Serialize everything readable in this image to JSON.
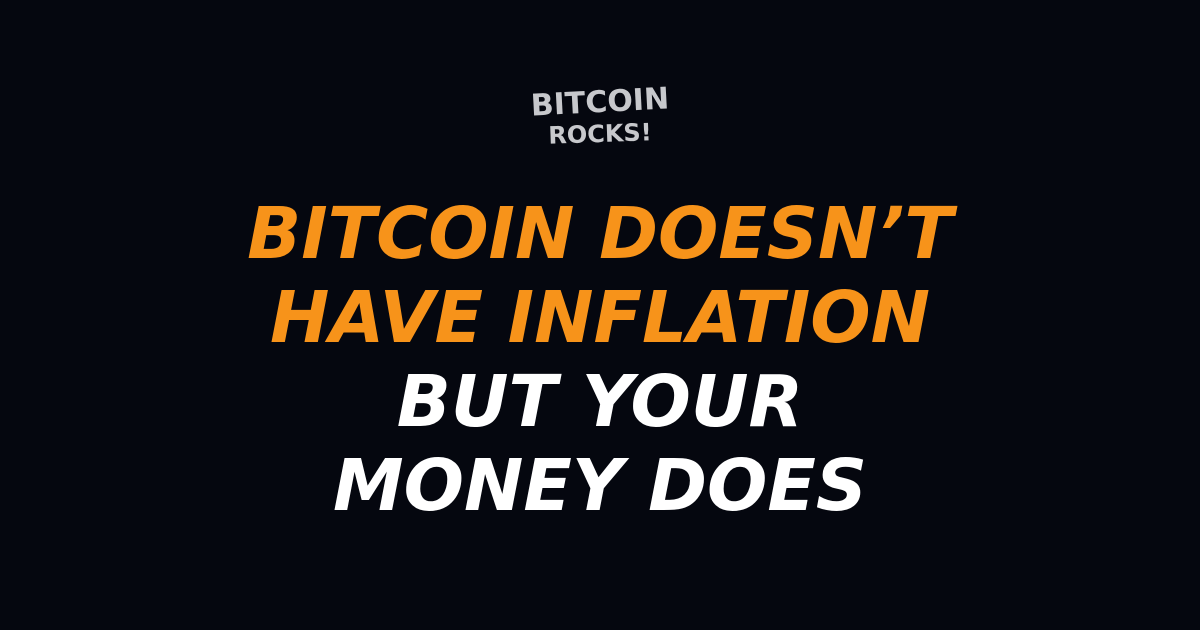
{
  "logo": {
    "line1": "BITCOIN",
    "line2": "ROCKS!"
  },
  "headline": {
    "lines": [
      "BITCOIN DOESN’T",
      "HAVE INFLATION",
      "BUT YOUR",
      "MONEY DOES"
    ]
  },
  "colors": {
    "background": "#05070f",
    "accent": "#f7931a",
    "text": "#ffffff",
    "logo": "#c7c8cc"
  }
}
